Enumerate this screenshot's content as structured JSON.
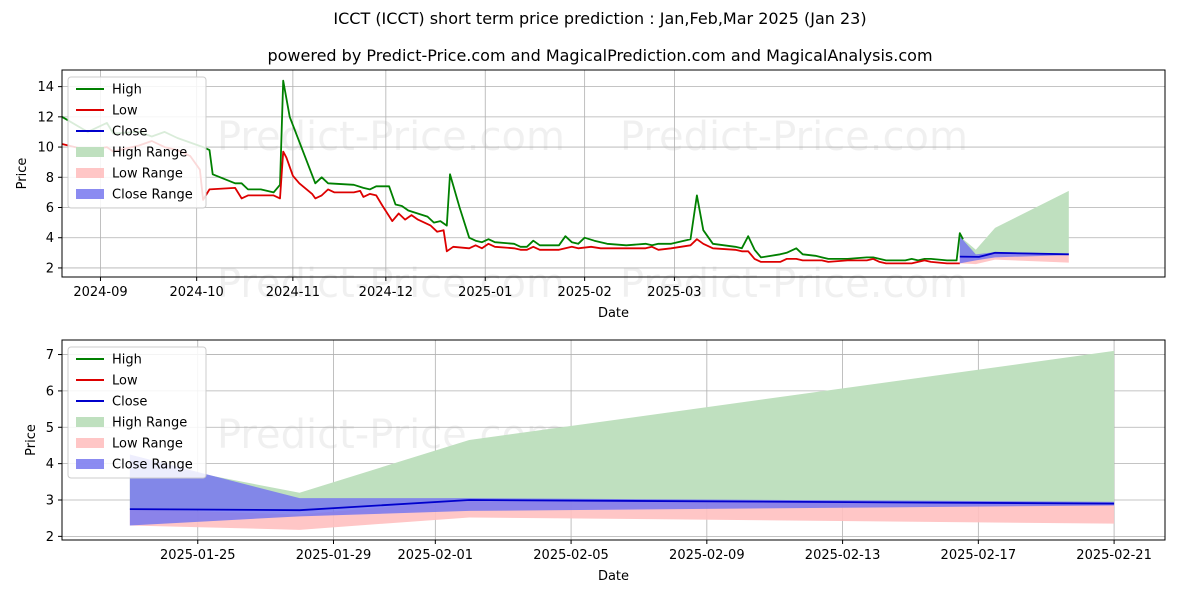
{
  "title": "ICCT (ICCT) short term price prediction : Jan,Feb,Mar 2025 (Jan 23)",
  "subtitle": "powered by Predict-Price.com and MagicalPrediction.com and MagicalAnalysis.com",
  "watermark": "Predict-Price.com",
  "colors": {
    "high": "#008000",
    "low": "#dd0000",
    "close": "#0000cc",
    "high_range": "#bfe0bf",
    "low_range": "#ffc0c0",
    "close_range": "#7777ee"
  },
  "chart_data": [
    {
      "type": "line",
      "panel": "top",
      "xlabel": "Date",
      "ylabel": "Price",
      "x_ticks": [
        "2024-09",
        "2024-10",
        "2024-11",
        "2024-12",
        "2025-01",
        "2025-02",
        "2025-03"
      ],
      "y_ticks": [
        "2",
        "4",
        "6",
        "8",
        "10",
        "12",
        "14"
      ],
      "ylim": [
        1.4,
        15.1
      ],
      "legend": [
        "High",
        "Low",
        "Close",
        "High Range",
        "Low Range",
        "Close Range"
      ],
      "series": [
        {
          "name": "High",
          "points": [
            [
              0,
              12
            ],
            [
              8,
              11
            ],
            [
              14,
              11.6
            ],
            [
              16,
              10.9
            ],
            [
              24,
              11
            ],
            [
              28,
              10.7
            ],
            [
              32,
              11
            ],
            [
              36,
              10.6
            ],
            [
              44,
              10
            ],
            [
              46,
              9.8
            ],
            [
              47,
              8.2
            ],
            [
              54,
              7.6
            ],
            [
              56,
              7.6
            ],
            [
              58,
              7.2
            ],
            [
              62,
              7.2
            ],
            [
              66,
              7
            ],
            [
              68,
              7.5
            ],
            [
              69,
              14.4
            ],
            [
              71,
              12
            ],
            [
              79,
              7.6
            ],
            [
              81,
              8
            ],
            [
              83,
              7.6
            ],
            [
              91,
              7.5
            ],
            [
              94,
              7.3
            ],
            [
              96,
              7.2
            ],
            [
              98,
              7.4
            ],
            [
              102,
              7.4
            ],
            [
              104,
              6.2
            ],
            [
              106,
              6.1
            ],
            [
              108,
              5.8
            ],
            [
              114,
              5.4
            ],
            [
              116,
              5
            ],
            [
              118,
              5.1
            ],
            [
              120,
              4.8
            ],
            [
              121,
              8.2
            ],
            [
              124,
              6
            ],
            [
              127,
              4
            ],
            [
              129,
              3.8
            ],
            [
              131,
              3.7
            ],
            [
              133,
              3.9
            ],
            [
              135,
              3.7
            ],
            [
              141,
              3.6
            ],
            [
              143,
              3.4
            ],
            [
              145,
              3.4
            ],
            [
              147,
              3.8
            ],
            [
              149,
              3.5
            ],
            [
              155,
              3.5
            ],
            [
              157,
              4.1
            ],
            [
              159,
              3.7
            ],
            [
              161,
              3.6
            ],
            [
              163,
              4
            ],
            [
              166,
              3.8
            ],
            [
              168,
              3.7
            ],
            [
              170,
              3.6
            ],
            [
              176,
              3.5
            ],
            [
              182,
              3.6
            ],
            [
              184,
              3.5
            ],
            [
              186,
              3.6
            ],
            [
              190,
              3.6
            ],
            [
              196,
              3.9
            ],
            [
              198,
              6.8
            ],
            [
              200,
              4.5
            ],
            [
              203,
              3.6
            ],
            [
              210,
              3.4
            ],
            [
              212,
              3.3
            ],
            [
              214,
              4.1
            ],
            [
              216,
              3.2
            ],
            [
              218,
              2.7
            ],
            [
              224,
              2.9
            ],
            [
              226,
              3
            ],
            [
              229,
              3.3
            ],
            [
              231,
              2.9
            ],
            [
              235,
              2.8
            ],
            [
              237,
              2.7
            ],
            [
              239,
              2.6
            ],
            [
              245,
              2.6
            ],
            [
              251,
              2.7
            ],
            [
              253,
              2.7
            ],
            [
              255,
              2.6
            ],
            [
              257,
              2.5
            ],
            [
              263,
              2.5
            ],
            [
              265,
              2.6
            ],
            [
              267,
              2.5
            ],
            [
              269,
              2.6
            ],
            [
              271,
              2.6
            ],
            [
              276,
              2.5
            ],
            [
              279,
              2.5
            ],
            [
              280,
              4.3
            ],
            [
              281,
              3.9
            ]
          ]
        },
        {
          "name": "Low",
          "points": [
            [
              0,
              10.2
            ],
            [
              8,
              9.8
            ],
            [
              14,
              10
            ],
            [
              16,
              9.7
            ],
            [
              24,
              10.1
            ],
            [
              28,
              10.4
            ],
            [
              32,
              10
            ],
            [
              36,
              9.8
            ],
            [
              40,
              9.4
            ],
            [
              43,
              8.5
            ],
            [
              44,
              6.5
            ],
            [
              46,
              7.2
            ],
            [
              54,
              7.3
            ],
            [
              56,
              6.6
            ],
            [
              58,
              6.8
            ],
            [
              62,
              6.8
            ],
            [
              66,
              6.8
            ],
            [
              68,
              6.6
            ],
            [
              69,
              9.7
            ],
            [
              70,
              9.3
            ],
            [
              72,
              8.1
            ],
            [
              74,
              7.6
            ],
            [
              78,
              6.9
            ],
            [
              79,
              6.6
            ],
            [
              81,
              6.8
            ],
            [
              83,
              7.2
            ],
            [
              85,
              7
            ],
            [
              91,
              7
            ],
            [
              93,
              7.1
            ],
            [
              94,
              6.7
            ],
            [
              96,
              6.9
            ],
            [
              98,
              6.8
            ],
            [
              100,
              6.1
            ],
            [
              103,
              5.1
            ],
            [
              105,
              5.6
            ],
            [
              107,
              5.2
            ],
            [
              109,
              5.5
            ],
            [
              111,
              5.2
            ],
            [
              115,
              4.8
            ],
            [
              117,
              4.4
            ],
            [
              119,
              4.5
            ],
            [
              120,
              3.1
            ],
            [
              122,
              3.4
            ],
            [
              127,
              3.3
            ],
            [
              129,
              3.5
            ],
            [
              131,
              3.3
            ],
            [
              133,
              3.6
            ],
            [
              135,
              3.4
            ],
            [
              141,
              3.3
            ],
            [
              143,
              3.2
            ],
            [
              145,
              3.2
            ],
            [
              147,
              3.4
            ],
            [
              149,
              3.2
            ],
            [
              155,
              3.2
            ],
            [
              157,
              3.3
            ],
            [
              159,
              3.4
            ],
            [
              161,
              3.3
            ],
            [
              165,
              3.4
            ],
            [
              168,
              3.3
            ],
            [
              170,
              3.3
            ],
            [
              176,
              3.3
            ],
            [
              182,
              3.3
            ],
            [
              184,
              3.4
            ],
            [
              186,
              3.2
            ],
            [
              190,
              3.3
            ],
            [
              196,
              3.5
            ],
            [
              198,
              3.9
            ],
            [
              200,
              3.6
            ],
            [
              203,
              3.3
            ],
            [
              210,
              3.2
            ],
            [
              212,
              3.1
            ],
            [
              214,
              3.1
            ],
            [
              216,
              2.6
            ],
            [
              218,
              2.4
            ],
            [
              224,
              2.4
            ],
            [
              226,
              2.6
            ],
            [
              229,
              2.6
            ],
            [
              231,
              2.5
            ],
            [
              235,
              2.5
            ],
            [
              237,
              2.5
            ],
            [
              239,
              2.4
            ],
            [
              245,
              2.5
            ],
            [
              251,
              2.5
            ],
            [
              253,
              2.6
            ],
            [
              255,
              2.4
            ],
            [
              257,
              2.3
            ],
            [
              263,
              2.3
            ],
            [
              265,
              2.3
            ],
            [
              267,
              2.4
            ],
            [
              269,
              2.5
            ],
            [
              271,
              2.4
            ],
            [
              276,
              2.3
            ],
            [
              279,
              2.3
            ],
            [
              280,
              2.3
            ]
          ]
        },
        {
          "name": "Close",
          "points": [
            [
              280,
              2.75
            ],
            [
              286,
              2.73
            ],
            [
              291,
              3.0
            ],
            [
              314,
              2.9
            ]
          ]
        },
        {
          "name": "High Range",
          "band": [
            [
              280,
              4.1,
              2.75
            ],
            [
              285,
              3.2,
              2.75
            ],
            [
              291,
              4.65,
              3.0
            ],
            [
              314,
              7.1,
              2.9
            ]
          ]
        },
        {
          "name": "Low Range",
          "band": [
            [
              280,
              2.75,
              2.3
            ],
            [
              285,
              2.6,
              2.25
            ],
            [
              291,
              3.0,
              2.55
            ],
            [
              314,
              2.9,
              2.35
            ]
          ]
        },
        {
          "name": "Close Range",
          "band": [
            [
              280,
              4.1,
              2.3
            ],
            [
              285,
              2.9,
              2.5
            ],
            [
              291,
              3.05,
              2.7
            ],
            [
              314,
              2.95,
              2.85
            ]
          ]
        }
      ]
    },
    {
      "type": "line",
      "panel": "bottom",
      "xlabel": "Date",
      "ylabel": "Price",
      "x_ticks": [
        "2025-01-25",
        "2025-01-29",
        "2025-02-01",
        "2025-02-05",
        "2025-02-09",
        "2025-02-13",
        "2025-02-17",
        "2025-02-21"
      ],
      "y_ticks": [
        "2",
        "3",
        "4",
        "5",
        "6",
        "7"
      ],
      "ylim": [
        1.9,
        7.4
      ],
      "legend": [
        "High",
        "Low",
        "Close",
        "High Range",
        "Low Range",
        "Close Range"
      ],
      "series": [
        {
          "name": "Close",
          "points": [
            [
              0,
              2.75
            ],
            [
              5,
              2.72
            ],
            [
              10,
              3.0
            ],
            [
              29,
              2.9
            ]
          ]
        },
        {
          "name": "High Range",
          "band": [
            [
              0,
              4.1,
              2.75
            ],
            [
              5,
              3.2,
              2.72
            ],
            [
              10,
              4.65,
              3.0
            ],
            [
              29,
              7.1,
              2.9
            ]
          ]
        },
        {
          "name": "Low Range",
          "band": [
            [
              0,
              2.75,
              2.3
            ],
            [
              5,
              2.6,
              2.18
            ],
            [
              10,
              3.0,
              2.52
            ],
            [
              29,
              2.9,
              2.35
            ]
          ]
        },
        {
          "name": "Close Range",
          "band": [
            [
              0,
              4.25,
              2.3
            ],
            [
              5,
              3.05,
              2.55
            ],
            [
              10,
              3.05,
              2.7
            ],
            [
              29,
              2.95,
              2.85
            ]
          ]
        }
      ]
    }
  ]
}
